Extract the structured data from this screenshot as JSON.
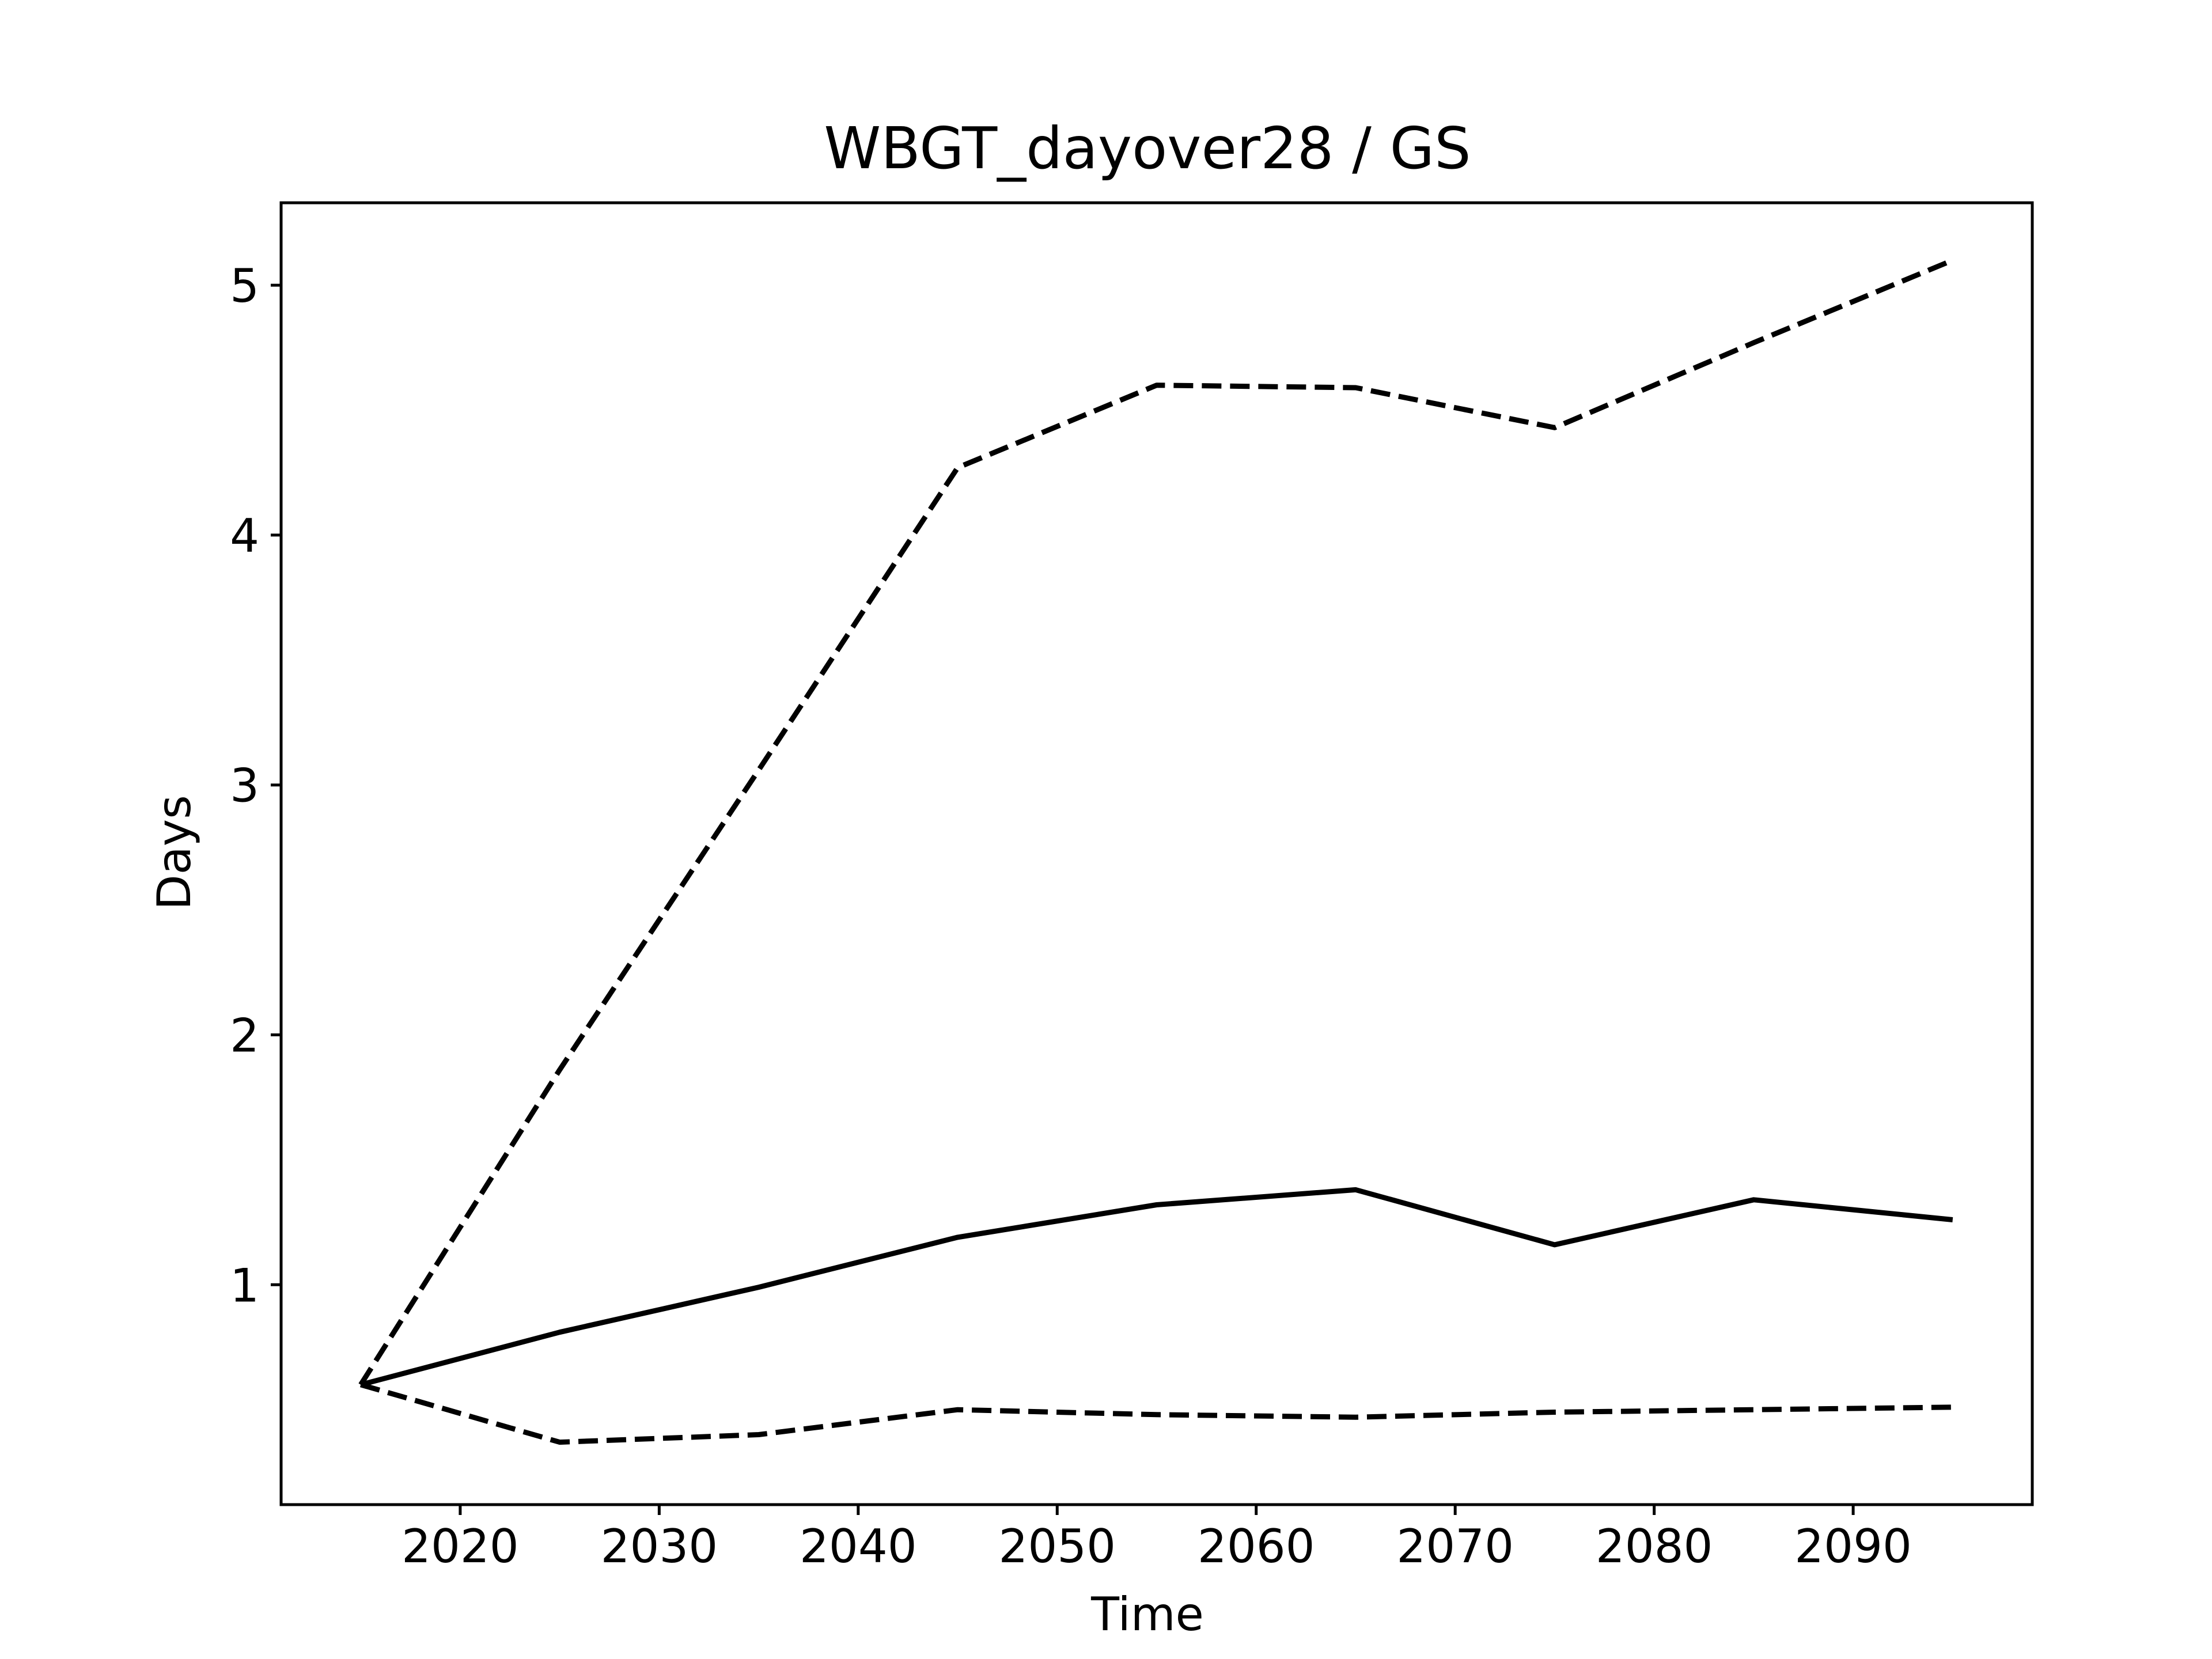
{
  "chart_data": {
    "type": "line",
    "title": "WBGT_dayover28 / GS",
    "xlabel": "Time",
    "ylabel": "Days",
    "xlim": [
      2011,
      2099
    ],
    "ylim": [
      0.12,
      5.33
    ],
    "xticks": [
      2020,
      2030,
      2040,
      2050,
      2060,
      2070,
      2080,
      2090
    ],
    "yticks": [
      1,
      2,
      3,
      4,
      5
    ],
    "grid": false,
    "x": [
      2015,
      2025,
      2035,
      2045,
      2055,
      2065,
      2075,
      2085,
      2095
    ],
    "series": [
      {
        "style": "solid",
        "color": "#000000",
        "values": [
          0.6,
          0.81,
          0.99,
          1.19,
          1.32,
          1.38,
          1.16,
          1.34,
          1.26
        ]
      },
      {
        "style": "dashed",
        "color": "#000000",
        "values": [
          0.6,
          1.86,
          3.06,
          4.27,
          4.6,
          4.59,
          4.43,
          4.77,
          5.1
        ]
      },
      {
        "style": "dashed",
        "color": "#000000",
        "values": [
          0.6,
          0.37,
          0.4,
          0.5,
          0.48,
          0.47,
          0.49,
          0.5,
          0.51
        ]
      }
    ]
  }
}
